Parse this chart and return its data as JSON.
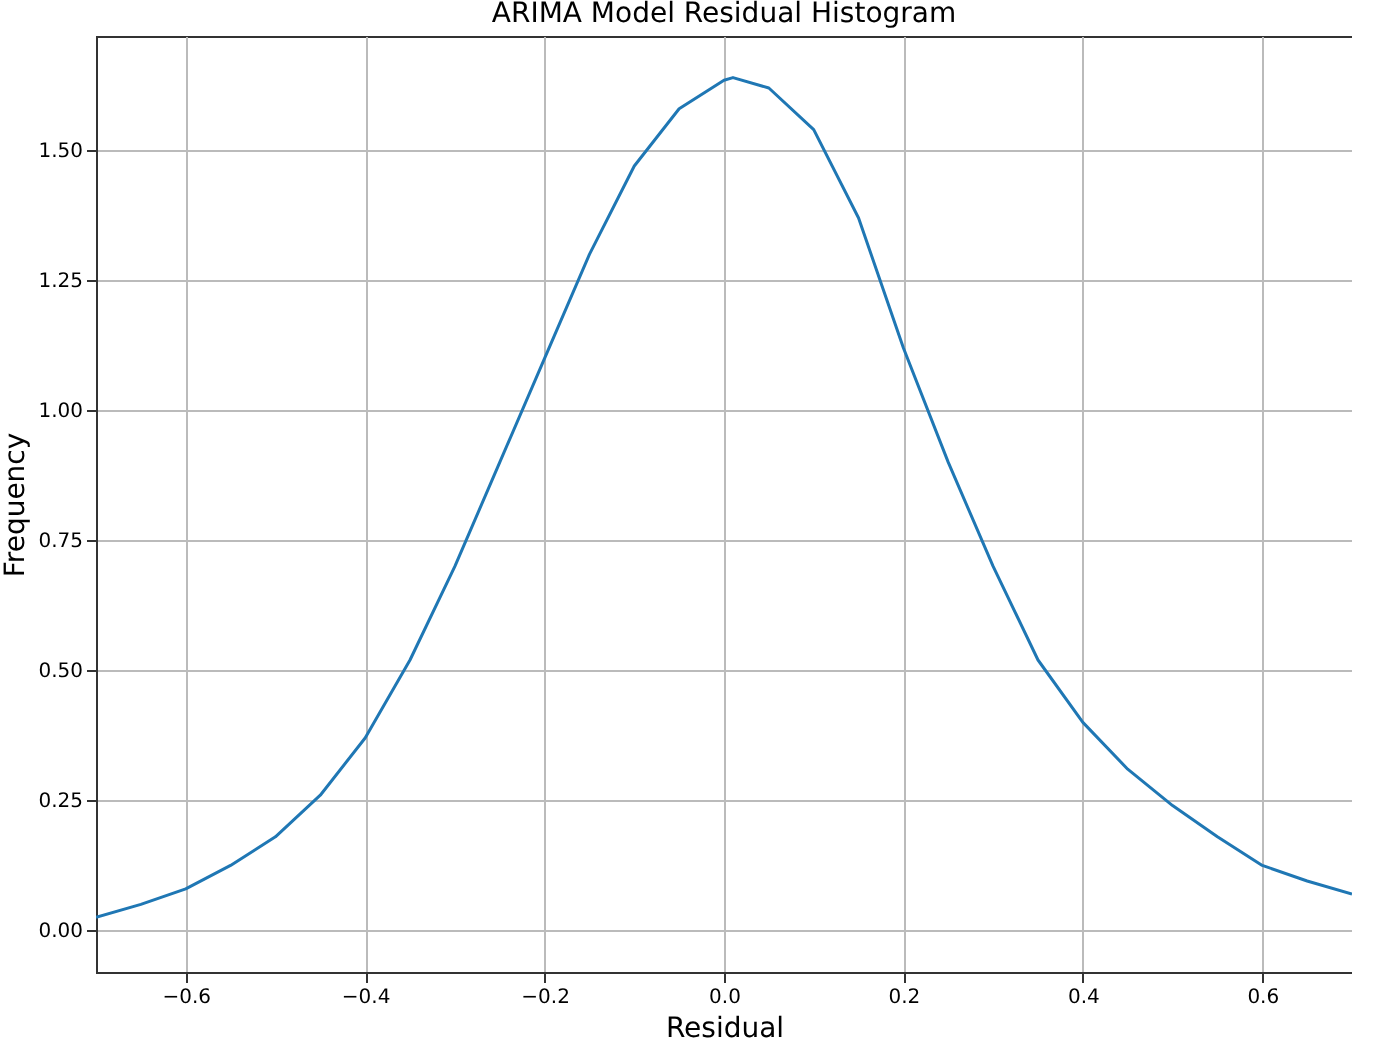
{
  "chart_data": {
    "type": "line",
    "title": "ARIMA Model Residual Histogram",
    "xlabel": "Residual",
    "ylabel": "Frequency",
    "x": [
      -0.7,
      -0.65,
      -0.6,
      -0.55,
      -0.5,
      -0.45,
      -0.4,
      -0.35,
      -0.3,
      -0.25,
      -0.2,
      -0.15,
      -0.1,
      -0.05,
      0,
      0.01,
      0.05,
      0.1,
      0.15,
      0.2,
      0.25,
      0.3,
      0.35,
      0.4,
      0.45,
      0.5,
      0.55,
      0.6,
      0.65,
      0.7
    ],
    "series": [
      {
        "color": "#1f77b4",
        "values": [
          0.025,
          0.05,
          0.08,
          0.125,
          0.18,
          0.26,
          0.37,
          0.52,
          0.7,
          0.9,
          1.1,
          1.3,
          1.47,
          1.58,
          1.635,
          1.64,
          1.62,
          1.54,
          1.37,
          1.12,
          0.9,
          0.7,
          0.52,
          0.4,
          0.31,
          0.24,
          0.18,
          0.125,
          0.095,
          0.07
        ]
      }
    ],
    "xlim": [
      -0.7,
      0.7
    ],
    "ylim": [
      -0.08,
      1.72
    ],
    "xticks": [
      {
        "value": -0.6,
        "label": "−0.6"
      },
      {
        "value": -0.4,
        "label": "−0.4"
      },
      {
        "value": -0.2,
        "label": "−0.2"
      },
      {
        "value": 0,
        "label": "0.0"
      },
      {
        "value": 0.2,
        "label": "0.2"
      },
      {
        "value": 0.4,
        "label": "0.4"
      },
      {
        "value": 0.6,
        "label": "0.6"
      }
    ],
    "yticks": [
      {
        "value": 0,
        "label": "0.00"
      },
      {
        "value": 0.25,
        "label": "0.25"
      },
      {
        "value": 0.5,
        "label": "0.50"
      },
      {
        "value": 0.75,
        "label": "0.75"
      },
      {
        "value": 1,
        "label": "1.00"
      },
      {
        "value": 1.25,
        "label": "1.25"
      },
      {
        "value": 1.5,
        "label": "1.50"
      }
    ],
    "grid": true
  }
}
